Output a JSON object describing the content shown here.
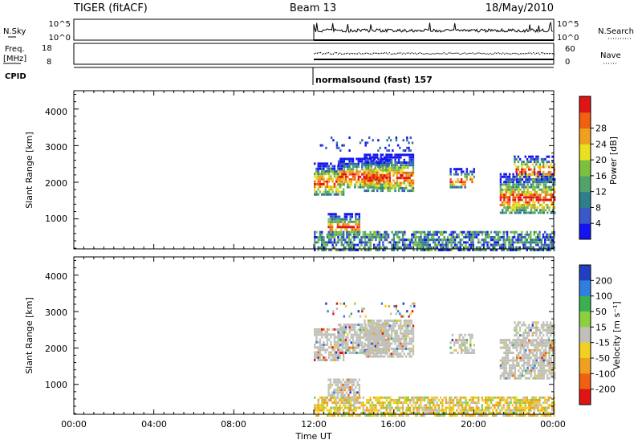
{
  "header": {
    "radar": "TIGER (fitACF)",
    "beam": "Beam 13",
    "date": "18/May/2010"
  },
  "nsky_panel": {
    "left_label": "N.Sky",
    "left_ticks": [
      "10^5",
      "10^0"
    ],
    "right_ticks": [
      "10^5",
      "10^0"
    ],
    "right_label": "N.Search"
  },
  "freq_panel": {
    "left_label_line1": "Freq.",
    "left_label_line2": "[MHz]",
    "left_ticks": [
      "18",
      "8"
    ],
    "right_ticks": [
      "60",
      "0"
    ],
    "right_label": "Nave"
  },
  "cpid": {
    "label": "CPID",
    "program": "normalsound (fast) 157"
  },
  "chart_data": [
    {
      "type": "heatmap",
      "parameter": "power",
      "ylabel": "Slant Range [km]",
      "ylim": [
        180,
        4500
      ],
      "yticks": [
        "1000",
        "2000",
        "3000",
        "4000"
      ],
      "xlim_hours": [
        0,
        24
      ],
      "data_start_hour": 12,
      "colorbar": {
        "label": "Power [dB]",
        "ticks": [
          "4",
          "8",
          "12",
          "16",
          "20",
          "24",
          "28"
        ],
        "colors": [
          "#1414f0",
          "#3b58c8",
          "#2e7e8c",
          "#52a36b",
          "#7dc040",
          "#e8e020",
          "#f0a020",
          "#f06010",
          "#e01414"
        ]
      }
    },
    {
      "type": "heatmap",
      "parameter": "velocity",
      "ylabel": "Slant Range [km]",
      "ylim": [
        180,
        4500
      ],
      "yticks": [
        "1000",
        "2000",
        "3000",
        "4000"
      ],
      "xlim_hours": [
        0,
        24
      ],
      "data_start_hour": 12,
      "colorbar": {
        "label": "Velocity [m s⁻¹]",
        "ticks": [
          "200",
          "100",
          "50",
          "15",
          "-15",
          "-50",
          "-100",
          "-200"
        ],
        "colors": [
          "#2040c0",
          "#2f7fe0",
          "#3cb050",
          "#8cd040",
          "#c0c0b8",
          "#f0d020",
          "#f0a020",
          "#f06010",
          "#e01414"
        ]
      }
    }
  ],
  "xaxis": {
    "label": "Time UT",
    "ticks": [
      "00:00",
      "04:00",
      "08:00",
      "12:00",
      "16:00",
      "20:00",
      "00:00"
    ]
  }
}
